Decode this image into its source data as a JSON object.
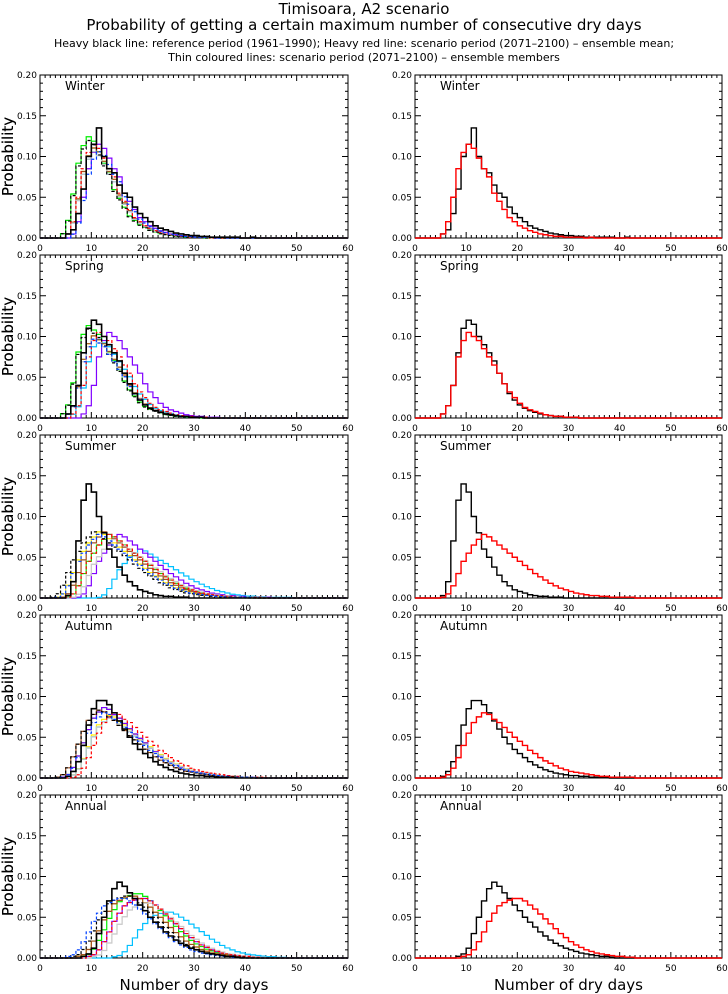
{
  "title": "Timisoara, A2 scenario",
  "subtitle": "Probability of getting a certain maximum number of consecutive dry days",
  "legend_line1": "Heavy black line: reference period (1961–1990); Heavy red line: scenario period (2071–2100) – ensemble mean;",
  "legend_line2": "Thin coloured lines: scenario period (2071–2100) – ensemble members",
  "colors": {
    "reference": "#000000",
    "scenario_mean": "#ff0000",
    "members": [
      "#00ee00",
      "#ffee00",
      "#00c0ff",
      "#8000ff",
      "#a05020",
      "#c8c8c8",
      "#ff0000",
      "#000000",
      "#0040ff"
    ]
  },
  "chart_data": {
    "type": "line",
    "step": true,
    "xlabel": "Number of dry days",
    "ylabel": "Probability",
    "xlim": [
      0,
      60
    ],
    "ylim": [
      0,
      0.2
    ],
    "xticks": [
      "0",
      "10",
      "20",
      "30",
      "40",
      "50",
      "60"
    ],
    "yticks": [
      "0.00",
      "0.05",
      "0.10",
      "0.15",
      "0.20"
    ],
    "panels": [
      {
        "season": "Winter",
        "reference": [
          0,
          0,
          0,
          0,
          0,
          0.005,
          0.01,
          0.03,
          0.06,
          0.1,
          0.115,
          0.135,
          0.1,
          0.085,
          0.08,
          0.065,
          0.055,
          0.05,
          0.038,
          0.03,
          0.025,
          0.02,
          0.015,
          0.012,
          0.01,
          0.008,
          0.006,
          0.005,
          0.004,
          0.003,
          0.003,
          0.002,
          0.002,
          0.001,
          0.001,
          0.001,
          0.001,
          0.001,
          0.001,
          0,
          0,
          0.001
        ],
        "scenario_mean": [
          0,
          0,
          0,
          0,
          0,
          0.005,
          0.02,
          0.05,
          0.085,
          0.105,
          0.115,
          0.11,
          0.098,
          0.085,
          0.075,
          0.055,
          0.045,
          0.035,
          0.025,
          0.02,
          0.015,
          0.012,
          0.009,
          0.007,
          0.005,
          0.004,
          0.003,
          0.002,
          0.002,
          0.001,
          0.001,
          0.001,
          0.001,
          0,
          0.001
        ],
        "member_shifts": [
          -1,
          0,
          0,
          1,
          0,
          0,
          0,
          -1,
          1
        ]
      },
      {
        "season": "Spring",
        "reference": [
          0,
          0,
          0,
          0,
          0,
          0.005,
          0.015,
          0.04,
          0.08,
          0.11,
          0.12,
          0.115,
          0.1,
          0.09,
          0.08,
          0.07,
          0.055,
          0.042,
          0.03,
          0.022,
          0.016,
          0.012,
          0.009,
          0.007,
          0.005,
          0.004,
          0.003,
          0.002,
          0.002,
          0.001,
          0.001,
          0.001
        ],
        "scenario_mean": [
          0,
          0,
          0,
          0,
          0,
          0.005,
          0.015,
          0.04,
          0.075,
          0.095,
          0.105,
          0.1,
          0.095,
          0.085,
          0.075,
          0.065,
          0.055,
          0.042,
          0.032,
          0.025,
          0.018,
          0.013,
          0.01,
          0.008,
          0.006,
          0.004,
          0.003,
          0.002,
          0.002,
          0.001,
          0.001,
          0.001
        ],
        "member_shifts": [
          -1,
          0,
          1,
          3,
          0,
          0,
          1,
          -1,
          0
        ]
      },
      {
        "season": "Summer",
        "reference": [
          0,
          0,
          0,
          0,
          0,
          0.003,
          0.02,
          0.07,
          0.12,
          0.14,
          0.13,
          0.1,
          0.08,
          0.06,
          0.05,
          0.038,
          0.028,
          0.02,
          0.015,
          0.01,
          0.008,
          0.006,
          0.004,
          0.003,
          0.002,
          0.002,
          0.001,
          0.001,
          0.001
        ],
        "scenario_mean": [
          0,
          0,
          0,
          0,
          0,
          0.001,
          0.005,
          0.015,
          0.03,
          0.045,
          0.055,
          0.065,
          0.072,
          0.078,
          0.075,
          0.07,
          0.065,
          0.06,
          0.055,
          0.05,
          0.045,
          0.04,
          0.035,
          0.03,
          0.026,
          0.022,
          0.018,
          0.015,
          0.012,
          0.01,
          0.008,
          0.006,
          0.005,
          0.004,
          0.003,
          0.003,
          0.002,
          0.002,
          0.001,
          0.001,
          0.001,
          0.001,
          0.001
        ],
        "member_shifts": [
          0,
          -2,
          6,
          2,
          -1,
          1,
          0,
          -3,
          -2
        ]
      },
      {
        "season": "Autumn",
        "reference": [
          0,
          0,
          0,
          0,
          0,
          0.002,
          0.008,
          0.02,
          0.04,
          0.065,
          0.085,
          0.095,
          0.095,
          0.09,
          0.08,
          0.07,
          0.06,
          0.05,
          0.042,
          0.035,
          0.03,
          0.025,
          0.02,
          0.016,
          0.013,
          0.01,
          0.008,
          0.006,
          0.005,
          0.004,
          0.003,
          0.003,
          0.002,
          0.002,
          0.001,
          0.001,
          0.001,
          0.001
        ],
        "scenario_mean": [
          0,
          0,
          0,
          0,
          0,
          0.001,
          0.004,
          0.012,
          0.025,
          0.04,
          0.055,
          0.068,
          0.075,
          0.08,
          0.078,
          0.072,
          0.068,
          0.062,
          0.056,
          0.05,
          0.045,
          0.04,
          0.034,
          0.03,
          0.025,
          0.021,
          0.018,
          0.015,
          0.012,
          0.01,
          0.008,
          0.007,
          0.006,
          0.005,
          0.004,
          0.003,
          0.002,
          0.002,
          0.001,
          0.001,
          0.001,
          0.001,
          0.001
        ],
        "member_shifts": [
          -1,
          0,
          0,
          -1,
          -2,
          0,
          1,
          -2,
          -1
        ]
      },
      {
        "season": "Annual",
        "reference": [
          0,
          0,
          0,
          0,
          0,
          0,
          0,
          0,
          0.002,
          0.005,
          0.012,
          0.03,
          0.05,
          0.07,
          0.085,
          0.093,
          0.088,
          0.08,
          0.073,
          0.065,
          0.058,
          0.05,
          0.044,
          0.038,
          0.032,
          0.027,
          0.022,
          0.018,
          0.015,
          0.012,
          0.01,
          0.008,
          0.006,
          0.005,
          0.004,
          0.003,
          0.002,
          0.002,
          0.001
        ],
        "scenario_mean": [
          0,
          0,
          0,
          0,
          0,
          0,
          0,
          0,
          0,
          0.002,
          0.004,
          0.01,
          0.02,
          0.032,
          0.045,
          0.055,
          0.064,
          0.068,
          0.071,
          0.073,
          0.073,
          0.07,
          0.065,
          0.06,
          0.054,
          0.048,
          0.042,
          0.036,
          0.03,
          0.025,
          0.02,
          0.016,
          0.013,
          0.01,
          0.008,
          0.006,
          0.005,
          0.004,
          0.003,
          0.002,
          0.002,
          0.001,
          0.001
        ],
        "member_shifts": [
          -1,
          -2,
          5,
          0,
          -2,
          1,
          0,
          -3,
          -4
        ]
      }
    ]
  }
}
